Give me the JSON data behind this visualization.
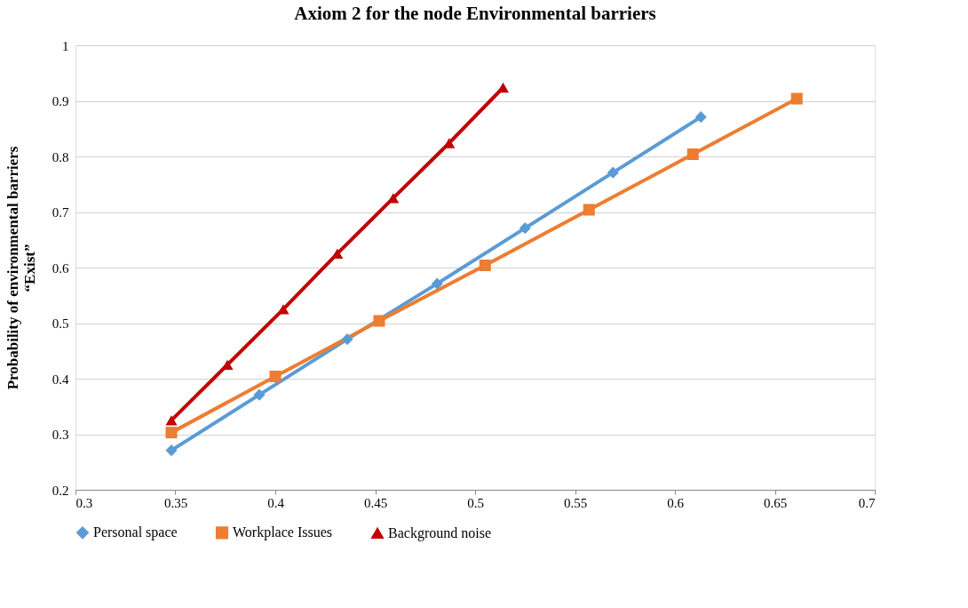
{
  "chart_data": {
    "type": "line",
    "title": "Axiom 2 for the node  Environmental barriers",
    "ylabel": "Probability of  environmental barriers\n“Exist”",
    "xlim": [
      0.3,
      0.7
    ],
    "xticks": [
      0.3,
      0.35,
      0.4,
      0.45,
      0.5,
      0.55,
      0.6,
      0.65,
      0.7
    ],
    "ylim": [
      0.2,
      1
    ],
    "yticks": [
      0.2,
      0.3,
      0.4,
      0.5,
      0.6,
      0.7,
      0.8,
      0.9,
      1
    ],
    "grid": "y",
    "legend": "bottom",
    "line_style": "solid",
    "series": [
      {
        "name": "Personal space",
        "color": "#5b9bd5",
        "marker": "diamond",
        "x": [
          0.348,
          0.392,
          0.436,
          0.481,
          0.525,
          0.569,
          0.613
        ],
        "values": [
          0.271,
          0.371,
          0.471,
          0.571,
          0.671,
          0.771,
          0.871
        ]
      },
      {
        "name": "Workplace Issues",
        "color": "#ed7d31",
        "marker": "square",
        "x": [
          0.348,
          0.4,
          0.452,
          0.505,
          0.557,
          0.609,
          0.661
        ],
        "values": [
          0.303,
          0.404,
          0.504,
          0.604,
          0.704,
          0.804,
          0.904
        ]
      },
      {
        "name": "Background noise",
        "color": "#c00000",
        "marker": "triangle",
        "x": [
          0.348,
          0.376,
          0.404,
          0.431,
          0.459,
          0.487,
          0.514
        ],
        "values": [
          0.325,
          0.425,
          0.525,
          0.625,
          0.725,
          0.824,
          0.924
        ]
      }
    ]
  }
}
